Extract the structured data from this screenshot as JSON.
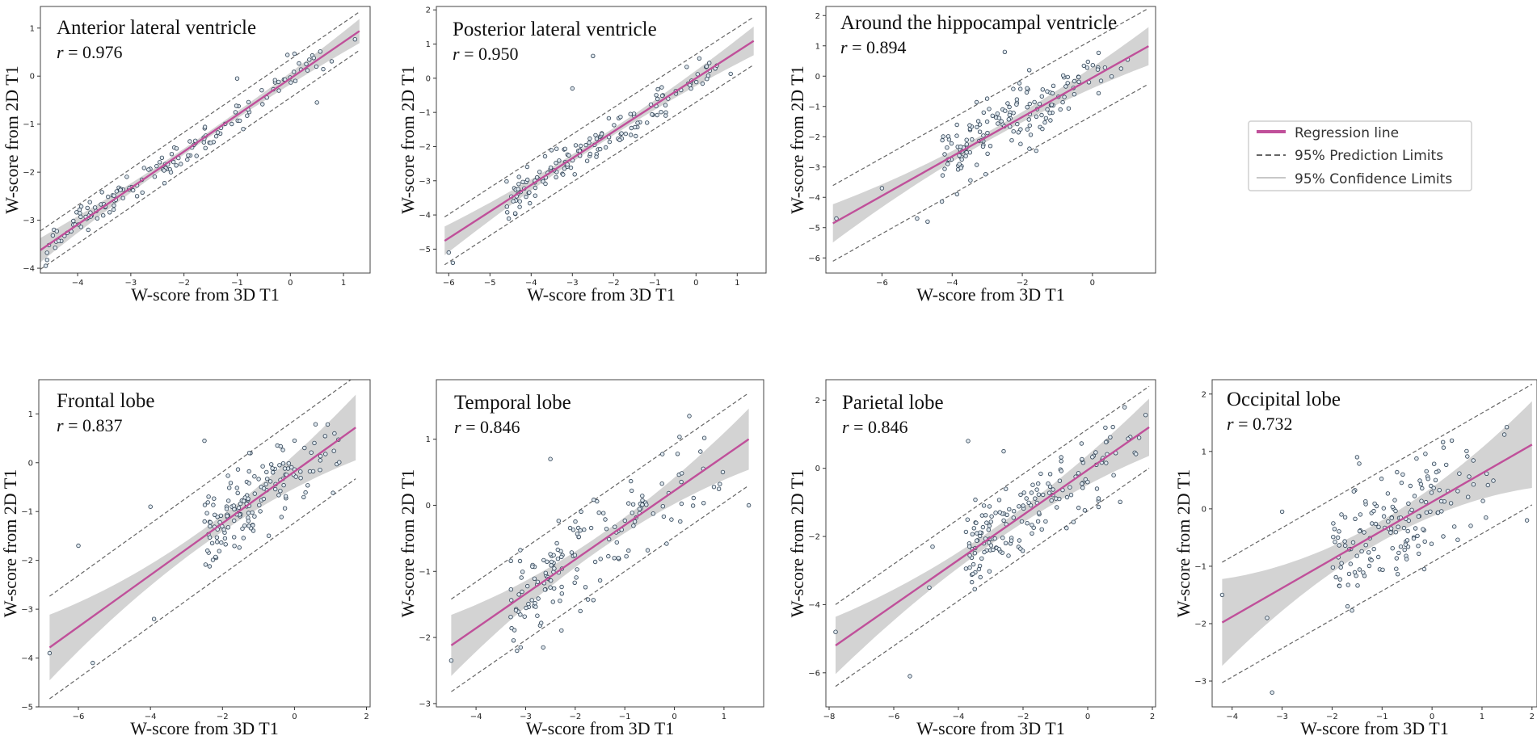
{
  "colors": {
    "regression": "#c0509a",
    "prediction": "#666666",
    "confidence": "#c8c8c8",
    "point_fill": "#dfe8ef",
    "point_edge": "#2c3e50",
    "frame": "#444444"
  },
  "legend": {
    "entries": [
      {
        "label": "Regression line",
        "style": "regression"
      },
      {
        "label": "95% Prediction Limits",
        "style": "prediction"
      },
      {
        "label": "95% Confidence Limits",
        "style": "confidence"
      }
    ]
  },
  "chart_data": [
    {
      "type": "scatter",
      "id": "p1",
      "title": "Anterior lateral ventricle",
      "r_label": "r",
      "r_value": "= 0.976",
      "xlabel": "W-score from 3D T1",
      "ylabel": "W-score from 2D T1",
      "xlim": [
        -4.7,
        1.5
      ],
      "ylim": [
        -4.1,
        1.45
      ],
      "xticks": [
        -4,
        -3,
        -2,
        -1,
        0,
        1
      ],
      "yticks": [
        -4,
        -3,
        -2,
        -1,
        0,
        1
      ],
      "regression": {
        "slope": 0.76,
        "intercept": -0.05,
        "x_range": [
          -4.7,
          1.3
        ]
      },
      "pred_half_width": 0.4,
      "conf_half_width": 0.06,
      "n_points": 150,
      "points_seed": 11,
      "points_x_range": [
        -4.6,
        1.3
      ],
      "noise": 0.15,
      "outliers": [
        [
          -1.0,
          -0.05
        ],
        [
          -3.8,
          -3.2
        ],
        [
          0.5,
          -0.55
        ],
        [
          -4.6,
          -3.95
        ]
      ]
    },
    {
      "type": "scatter",
      "id": "p2",
      "title": "Posterior lateral ventricle",
      "r_label": "r",
      "r_value": "= 0.950",
      "xlabel": "W-score from 3D T1",
      "ylabel": "W-score from 2D T1",
      "xlim": [
        -6.3,
        1.7
      ],
      "ylim": [
        -5.7,
        2.1
      ],
      "xticks": [
        -6,
        -5,
        -4,
        -3,
        -2,
        -1,
        0,
        1
      ],
      "yticks": [
        -5,
        -4,
        -3,
        -2,
        -1,
        0,
        1,
        2
      ],
      "regression": {
        "slope": 0.78,
        "intercept": 0.0,
        "x_range": [
          -6.1,
          1.4
        ]
      },
      "pred_half_width": 0.7,
      "conf_half_width": 0.1,
      "n_points": 150,
      "points_seed": 23,
      "points_x_range": [
        -4.6,
        1.3
      ],
      "noise": 0.25,
      "outliers": [
        [
          -2.5,
          0.65
        ],
        [
          -3.0,
          -0.3
        ],
        [
          -6.0,
          -5.1
        ],
        [
          -5.9,
          -5.4
        ]
      ]
    },
    {
      "type": "scatter",
      "id": "p3",
      "title": "Around the hippocampal ventricle",
      "r_label": "r",
      "r_value": "= 0.894",
      "xlabel": "W-score from 3D T1",
      "ylabel": "W-score from 2D T1",
      "xlim": [
        -7.6,
        1.8
      ],
      "ylim": [
        -6.5,
        2.3
      ],
      "xticks": [
        -6,
        -4,
        -2,
        0
      ],
      "yticks": [
        -6,
        -5,
        -4,
        -3,
        -2,
        -1,
        0,
        1,
        2
      ],
      "regression": {
        "slope": 0.65,
        "intercept": -0.05,
        "x_range": [
          -7.4,
          1.6
        ]
      },
      "pred_half_width": 1.25,
      "conf_half_width": 0.15,
      "n_points": 160,
      "points_seed": 37,
      "points_x_range": [
        -4.3,
        1.5
      ],
      "noise": 0.55,
      "outliers": [
        [
          -7.3,
          -4.7
        ],
        [
          -6.0,
          -3.7
        ],
        [
          -5.0,
          -4.7
        ],
        [
          -4.7,
          -4.8
        ],
        [
          -2.5,
          0.8
        ],
        [
          -1.8,
          0.2
        ]
      ]
    },
    {
      "type": "scatter",
      "id": "p4",
      "title": "Frontal lobe",
      "r_label": "r",
      "r_value": "= 0.837",
      "xlabel": "W-score from 3D T1",
      "ylabel": "W-score from 2D T1",
      "xlim": [
        -7.1,
        2.1
      ],
      "ylim": [
        -5.0,
        1.7
      ],
      "xticks": [
        -6,
        -4,
        -2,
        0,
        2
      ],
      "yticks": [
        -5,
        -4,
        -3,
        -2,
        -1,
        0,
        1
      ],
      "regression": {
        "slope": 0.53,
        "intercept": -0.18,
        "x_range": [
          -6.8,
          1.7
        ]
      },
      "pred_half_width": 1.05,
      "conf_half_width": 0.16,
      "n_points": 160,
      "points_seed": 41,
      "points_x_range": [
        -2.5,
        1.6
      ],
      "noise": 0.4,
      "outliers": [
        [
          -6.8,
          -3.9
        ],
        [
          -6.0,
          -1.7
        ],
        [
          -4.0,
          -0.9
        ],
        [
          -3.9,
          -3.2
        ],
        [
          -2.5,
          0.45
        ],
        [
          -5.6,
          -4.1
        ]
      ]
    },
    {
      "type": "scatter",
      "id": "p5",
      "title": "Temporal lobe",
      "r_label": "r",
      "r_value": "= 0.846",
      "xlabel": "W-score from 3D T1",
      "ylabel": "W-score from 2D T1",
      "xlim": [
        -4.8,
        1.8
      ],
      "ylim": [
        -3.05,
        1.9
      ],
      "xticks": [
        -4,
        -3,
        -2,
        -1,
        0,
        1
      ],
      "yticks": [
        -3,
        -2,
        -1,
        0,
        1
      ],
      "regression": {
        "slope": 0.52,
        "intercept": 0.22,
        "x_range": [
          -4.5,
          1.5
        ]
      },
      "pred_half_width": 0.7,
      "conf_half_width": 0.11,
      "n_points": 160,
      "points_seed": 53,
      "points_x_range": [
        -3.3,
        1.3
      ],
      "noise": 0.35,
      "outliers": [
        [
          -4.5,
          -2.35
        ],
        [
          -2.5,
          0.7
        ],
        [
          0.3,
          1.35
        ],
        [
          1.5,
          0.0
        ],
        [
          -3.1,
          -2.15
        ]
      ]
    },
    {
      "type": "scatter",
      "id": "p6",
      "title": "Parietal lobe",
      "r_label": "r",
      "r_value": "= 0.846",
      "xlabel": "W-score from 3D T1",
      "ylabel": "W-score from 2D T1",
      "xlim": [
        -8.1,
        2.1
      ],
      "ylim": [
        -7.0,
        2.6
      ],
      "xticks": [
        -8,
        -6,
        -4,
        -2,
        0,
        2
      ],
      "yticks": [
        -6,
        -4,
        -2,
        0,
        2
      ],
      "regression": {
        "slope": 0.66,
        "intercept": -0.05,
        "x_range": [
          -7.8,
          1.9
        ]
      },
      "pred_half_width": 1.2,
      "conf_half_width": 0.2,
      "n_points": 170,
      "points_seed": 67,
      "points_x_range": [
        -3.8,
        1.8
      ],
      "noise": 0.55,
      "outliers": [
        [
          -7.8,
          -4.8
        ],
        [
          -5.5,
          -6.1
        ],
        [
          -3.7,
          0.8
        ],
        [
          -2.6,
          0.5
        ],
        [
          -4.8,
          -2.3
        ],
        [
          -4.9,
          -3.5
        ]
      ]
    },
    {
      "type": "scatter",
      "id": "p7",
      "title": "Occipital lobe",
      "r_label": "r",
      "r_value": "= 0.732",
      "xlabel": "W-score from 3D T1",
      "ylabel": "W-score from 2D T1",
      "xlim": [
        -4.4,
        2.1
      ],
      "ylim": [
        -3.45,
        2.25
      ],
      "xticks": [
        -4,
        -3,
        -2,
        -1,
        0,
        1,
        2
      ],
      "yticks": [
        -3,
        -2,
        -1,
        0,
        1,
        2
      ],
      "regression": {
        "slope": 0.5,
        "intercept": 0.12,
        "x_range": [
          -4.2,
          2.0
        ]
      },
      "pred_half_width": 1.05,
      "conf_half_width": 0.18,
      "n_points": 170,
      "points_seed": 79,
      "points_x_range": [
        -2.0,
        1.7
      ],
      "noise": 0.45,
      "outliers": [
        [
          -4.2,
          -1.5
        ],
        [
          -3.2,
          -3.2
        ],
        [
          -3.0,
          -0.05
        ],
        [
          -1.5,
          0.9
        ],
        [
          1.9,
          -0.2
        ],
        [
          -3.3,
          -1.9
        ]
      ]
    }
  ]
}
